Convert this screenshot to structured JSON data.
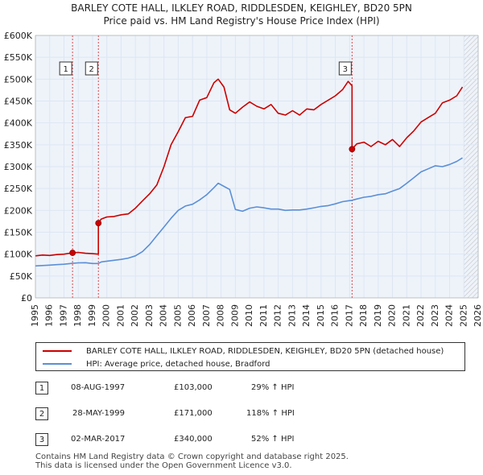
{
  "title_line1": "BARLEY COTE HALL, ILKLEY ROAD, RIDDLESDEN, KEIGHLEY, BD20 5PN",
  "title_line2": "Price paid vs. HM Land Registry's House Price Index (HPI)",
  "legend": {
    "red_label": "BARLEY COTE HALL, ILKLEY ROAD, RIDDLESDEN, KEIGHLEY, BD20 5PN (detached house)",
    "blue_label": "HPI: Average price, detached house, Bradford"
  },
  "sales": [
    {
      "num": "1",
      "date": "08-AUG-1997",
      "price": "£103,000",
      "hpi": "29% ↑ HPI"
    },
    {
      "num": "2",
      "date": "28-MAY-1999",
      "price": "£171,000",
      "hpi": "118% ↑ HPI"
    },
    {
      "num": "3",
      "date": "02-MAR-2017",
      "price": "£340,000",
      "hpi": "52% ↑ HPI"
    }
  ],
  "footer_line1": "Contains HM Land Registry data © Crown copyright and database right 2025.",
  "footer_line2": "This data is licensed under the Open Government Licence v3.0.",
  "colors": {
    "property": "#cc0000",
    "hpi": "#5b8fd6",
    "grid": "#dde6f2",
    "future_hatch": "#b0b0b0"
  },
  "chart_data": {
    "type": "line",
    "xlim": [
      1995,
      2026
    ],
    "ylim": [
      0,
      600000
    ],
    "y_ticks": [
      0,
      50000,
      100000,
      150000,
      200000,
      250000,
      300000,
      350000,
      400000,
      450000,
      500000,
      550000,
      600000
    ],
    "y_tick_labels": [
      "£0",
      "£50K",
      "£100K",
      "£150K",
      "£200K",
      "£250K",
      "£300K",
      "£350K",
      "£400K",
      "£450K",
      "£500K",
      "£550K",
      "£600K"
    ],
    "x_ticks": [
      1995,
      1996,
      1997,
      1998,
      1999,
      2000,
      2001,
      2002,
      2003,
      2004,
      2005,
      2006,
      2007,
      2008,
      2009,
      2010,
      2011,
      2012,
      2013,
      2014,
      2015,
      2016,
      2017,
      2018,
      2019,
      2020,
      2021,
      2022,
      2023,
      2024,
      2025,
      2026
    ],
    "x_tick_labels": [
      "1995",
      "1996",
      "1997",
      "1998",
      "1999",
      "2000",
      "2001",
      "2002",
      "2003",
      "2004",
      "2005",
      "2006",
      "2007",
      "2008",
      "2009",
      "2010",
      "2011",
      "2012",
      "2013",
      "2014",
      "2015",
      "2016",
      "2017",
      "2018",
      "2019",
      "2020",
      "2021",
      "2022",
      "2023",
      "2024",
      "2025",
      "2026"
    ],
    "future_from": 2025.0,
    "series": [
      {
        "name": "BARLEY COTE HALL, ILKLEY ROAD, RIDDLESDEN, KEIGHLEY, BD20 5PN (detached house)",
        "color": "#cc0000",
        "x": [
          1995.0,
          1995.5,
          1996.0,
          1996.5,
          1997.0,
          1997.6,
          1998.0,
          1998.5,
          1999.0,
          1999.41,
          1999.41,
          1999.6,
          2000.0,
          2000.5,
          2001.0,
          2001.5,
          2002.0,
          2002.5,
          2003.0,
          2003.5,
          2004.0,
          2004.5,
          2005.0,
          2005.5,
          2006.0,
          2006.5,
          2007.0,
          2007.5,
          2007.8,
          2008.2,
          2008.6,
          2009.0,
          2009.5,
          2010.0,
          2010.5,
          2011.0,
          2011.5,
          2012.0,
          2012.5,
          2013.0,
          2013.5,
          2014.0,
          2014.5,
          2015.0,
          2015.5,
          2016.0,
          2016.5,
          2016.9,
          2017.17,
          2017.17,
          2017.5,
          2018.0,
          2018.5,
          2019.0,
          2019.5,
          2020.0,
          2020.5,
          2021.0,
          2021.5,
          2022.0,
          2022.5,
          2023.0,
          2023.5,
          2024.0,
          2024.5,
          2024.9
        ],
        "y": [
          96000,
          98000,
          97000,
          99000,
          100000,
          103000,
          104000,
          102000,
          101000,
          100000,
          171000,
          180000,
          185000,
          186000,
          190000,
          192000,
          205000,
          222000,
          238000,
          258000,
          300000,
          350000,
          380000,
          412000,
          415000,
          452000,
          458000,
          492000,
          500000,
          482000,
          430000,
          422000,
          436000,
          448000,
          438000,
          432000,
          442000,
          422000,
          418000,
          428000,
          418000,
          432000,
          430000,
          442000,
          452000,
          462000,
          476000,
          495000,
          485000,
          340000,
          352000,
          356000,
          346000,
          358000,
          350000,
          362000,
          346000,
          366000,
          382000,
          402000,
          412000,
          422000,
          446000,
          452000,
          462000,
          482000
        ]
      },
      {
        "name": "HPI: Average price, detached house, Bradford",
        "color": "#5b8fd6",
        "x": [
          1995.0,
          1995.5,
          1996.0,
          1996.5,
          1997.0,
          1997.6,
          1998.0,
          1998.5,
          1999.0,
          1999.41,
          1999.6,
          2000.0,
          2000.5,
          2001.0,
          2001.5,
          2002.0,
          2002.5,
          2003.0,
          2003.5,
          2004.0,
          2004.5,
          2005.0,
          2005.5,
          2006.0,
          2006.5,
          2007.0,
          2007.5,
          2007.8,
          2008.2,
          2008.6,
          2009.0,
          2009.5,
          2010.0,
          2010.5,
          2011.0,
          2011.5,
          2012.0,
          2012.5,
          2013.0,
          2013.5,
          2014.0,
          2014.5,
          2015.0,
          2015.5,
          2016.0,
          2016.5,
          2016.9,
          2017.17,
          2017.5,
          2018.0,
          2018.5,
          2019.0,
          2019.5,
          2020.0,
          2020.5,
          2021.0,
          2021.5,
          2022.0,
          2022.5,
          2023.0,
          2023.5,
          2024.0,
          2024.5,
          2024.9
        ],
        "y": [
          73000,
          74000,
          75000,
          76000,
          77000,
          79000,
          80000,
          80500,
          78500,
          78500,
          82000,
          84000,
          86000,
          88000,
          91000,
          96000,
          106000,
          122000,
          142000,
          162000,
          182000,
          200000,
          210000,
          214000,
          224000,
          236000,
          252000,
          262000,
          255000,
          248000,
          202000,
          198000,
          205000,
          208000,
          206000,
          203000,
          203000,
          200000,
          201000,
          201000,
          203000,
          206000,
          209000,
          211000,
          215000,
          220000,
          222000,
          223000,
          226000,
          230000,
          232000,
          236000,
          238000,
          244000,
          250000,
          262000,
          275000,
          288000,
          295000,
          302000,
          300000,
          305000,
          312000,
          320000
        ]
      }
    ],
    "sale_points": [
      {
        "label": "1",
        "x": 1997.6,
        "y": 103000
      },
      {
        "label": "2",
        "x": 1999.41,
        "y": 171000
      },
      {
        "label": "3",
        "x": 2017.17,
        "y": 340000
      }
    ]
  }
}
